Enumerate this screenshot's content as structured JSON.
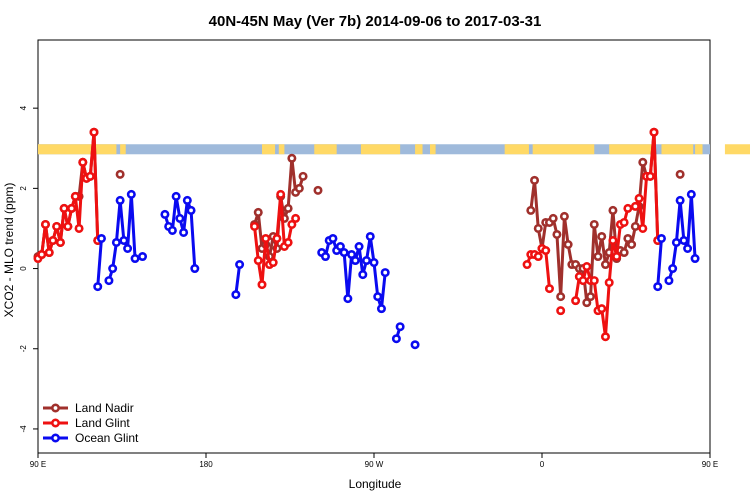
{
  "chart_data": {
    "type": "line",
    "title": "40N-45N May (Ver 7b)   2014-09-06 to 2017-03-31",
    "xlabel": "Longitude",
    "ylabel": "XCO2 - MLO trend (ppm)",
    "xlim": [
      90,
      450
    ],
    "ylim": [
      -4.6,
      5.7
    ],
    "xticks": [
      {
        "value": 90,
        "label": "90 E"
      },
      {
        "value": 180,
        "label": "180"
      },
      {
        "value": 270,
        "label": "90 W"
      },
      {
        "value": 360,
        "label": "0"
      },
      {
        "value": 450,
        "label": "90 E"
      },
      {
        "value": 540,
        "label": "180"
      }
    ],
    "yticks": [
      {
        "value": -4,
        "label": "-4"
      },
      {
        "value": -2,
        "label": "-2"
      },
      {
        "value": 0,
        "label": "0"
      },
      {
        "value": 2,
        "label": "2"
      },
      {
        "value": 4,
        "label": "4"
      }
    ],
    "grid": false,
    "legend_position": "bottom-left",
    "land_ocean_strip": {
      "y_range": [
        2.85,
        3.1
      ],
      "land_color": "#ffd966",
      "ocean_color": "#9fbadb",
      "land_segments": [
        [
          90,
          132
        ],
        [
          134,
          137
        ],
        [
          210,
          217
        ],
        [
          219,
          222
        ],
        [
          238,
          250
        ],
        [
          263,
          284
        ],
        [
          292,
          296
        ],
        [
          300,
          303
        ],
        [
          340,
          353
        ],
        [
          355,
          388
        ],
        [
          396,
          420
        ],
        [
          424,
          441
        ],
        [
          442,
          446
        ],
        [
          458,
          486
        ],
        [
          488,
          490
        ]
      ]
    },
    "series": [
      {
        "name": "Land Nadir",
        "color": "#a0302c",
        "segments": [
          [
            [
              90,
              0.3
            ],
            [
              92,
              0.35
            ],
            [
              94,
              1.1
            ],
            [
              96,
              0.4
            ],
            [
              98,
              0.7
            ],
            [
              100,
              1.05
            ],
            [
              102,
              0.65
            ],
            [
              104,
              1.5
            ],
            [
              106,
              1.05
            ],
            [
              108,
              1.5
            ],
            [
              110,
              1.8
            ],
            [
              112,
              1.8
            ],
            [
              114,
              2.65
            ],
            [
              116,
              2.25
            ],
            [
              118,
              2.3
            ],
            [
              120,
              3.4
            ],
            [
              122,
              0.7
            ]
          ],
          [
            [
              134,
              2.35
            ]
          ],
          [
            [
              206,
              1.1
            ],
            [
              208,
              1.4
            ],
            [
              210,
              0.5
            ],
            [
              212,
              0.6
            ],
            [
              214,
              0.3
            ],
            [
              216,
              0.8
            ],
            [
              218,
              0.5
            ],
            [
              220,
              1.8
            ],
            [
              222,
              1.25
            ],
            [
              224,
              1.5
            ],
            [
              226,
              2.75
            ],
            [
              228,
              1.9
            ],
            [
              230,
              2.0
            ],
            [
              232,
              2.3
            ]
          ],
          [
            [
              240,
              1.95
            ]
          ],
          [
            [
              354,
              1.45
            ],
            [
              356,
              2.2
            ],
            [
              358,
              1.0
            ],
            [
              360,
              0.5
            ],
            [
              362,
              1.15
            ],
            [
              364,
              1.15
            ],
            [
              366,
              1.25
            ],
            [
              368,
              0.85
            ],
            [
              370,
              -0.7
            ],
            [
              372,
              1.3
            ],
            [
              374,
              0.6
            ],
            [
              376,
              0.1
            ],
            [
              378,
              0.1
            ],
            [
              380,
              0.0
            ],
            [
              382,
              0.0
            ],
            [
              384,
              -0.85
            ],
            [
              386,
              -0.7
            ],
            [
              388,
              1.1
            ],
            [
              390,
              0.3
            ],
            [
              392,
              0.8
            ],
            [
              394,
              0.1
            ],
            [
              396,
              0.4
            ],
            [
              398,
              1.45
            ],
            [
              400,
              0.25
            ],
            [
              402,
              0.45
            ],
            [
              404,
              0.4
            ],
            [
              406,
              0.75
            ],
            [
              408,
              0.6
            ],
            [
              410,
              1.05
            ],
            [
              412,
              1.55
            ],
            [
              414,
              2.65
            ],
            [
              416,
              2.3
            ],
            [
              418,
              2.3
            ],
            [
              420,
              3.4
            ],
            [
              422,
              0.7
            ]
          ],
          [
            [
              434,
              2.35
            ]
          ]
        ]
      },
      {
        "name": "Land Glint",
        "color": "#ee1111",
        "segments": [
          [
            [
              90,
              0.25
            ],
            [
              92,
              0.35
            ],
            [
              94,
              1.1
            ],
            [
              96,
              0.4
            ],
            [
              98,
              0.7
            ],
            [
              100,
              1.05
            ],
            [
              102,
              0.65
            ],
            [
              104,
              1.5
            ],
            [
              106,
              1.05
            ],
            [
              108,
              1.5
            ],
            [
              110,
              1.8
            ],
            [
              112,
              1.0
            ],
            [
              114,
              2.65
            ],
            [
              116,
              2.25
            ],
            [
              118,
              2.3
            ],
            [
              120,
              3.4
            ],
            [
              122,
              0.7
            ]
          ],
          [
            [
              206,
              1.05
            ],
            [
              208,
              0.2
            ],
            [
              210,
              -0.4
            ],
            [
              212,
              0.75
            ],
            [
              214,
              0.1
            ],
            [
              216,
              0.15
            ],
            [
              218,
              0.75
            ],
            [
              220,
              1.85
            ],
            [
              222,
              0.55
            ],
            [
              224,
              0.65
            ],
            [
              226,
              1.1
            ],
            [
              228,
              1.25
            ]
          ],
          [
            [
              352,
              0.1
            ],
            [
              354,
              0.35
            ],
            [
              356,
              0.35
            ],
            [
              358,
              0.3
            ],
            [
              360,
              0.5
            ],
            [
              362,
              0.45
            ],
            [
              364,
              -0.5
            ]
          ],
          [
            [
              370,
              -1.05
            ]
          ],
          [
            [
              378,
              -0.8
            ],
            [
              380,
              -0.2
            ],
            [
              382,
              -0.3
            ],
            [
              384,
              0.05
            ],
            [
              386,
              -0.3
            ],
            [
              388,
              -0.3
            ],
            [
              390,
              -1.05
            ],
            [
              392,
              -1.0
            ],
            [
              394,
              -1.7
            ],
            [
              396,
              -0.35
            ],
            [
              398,
              0.7
            ],
            [
              400,
              0.3
            ],
            [
              402,
              1.1
            ],
            [
              404,
              1.15
            ],
            [
              406,
              1.5
            ]
          ],
          [
            [
              410,
              1.55
            ],
            [
              412,
              1.75
            ],
            [
              414,
              1.0
            ],
            [
              416,
              2.3
            ],
            [
              418,
              2.3
            ],
            [
              420,
              3.4
            ],
            [
              422,
              0.7
            ]
          ]
        ]
      },
      {
        "name": "Ocean Glint",
        "color": "#0a0af0",
        "segments": [
          [
            [
              122,
              -0.45
            ],
            [
              124,
              0.75
            ]
          ],
          [
            [
              128,
              -0.3
            ],
            [
              130,
              0.0
            ],
            [
              132,
              0.65
            ],
            [
              134,
              1.7
            ],
            [
              136,
              0.7
            ],
            [
              138,
              0.5
            ],
            [
              140,
              1.85
            ],
            [
              142,
              0.25
            ]
          ],
          [
            [
              146,
              0.3
            ]
          ],
          [
            [
              158,
              1.35
            ],
            [
              160,
              1.05
            ],
            [
              162,
              0.95
            ],
            [
              164,
              1.8
            ],
            [
              166,
              1.25
            ],
            [
              168,
              0.9
            ],
            [
              170,
              1.7
            ],
            [
              172,
              1.45
            ],
            [
              174,
              0.0
            ]
          ],
          [
            [
              196,
              -0.65
            ],
            [
              198,
              0.1
            ]
          ],
          [
            [
              242,
              0.4
            ],
            [
              244,
              0.3
            ],
            [
              246,
              0.7
            ],
            [
              248,
              0.75
            ],
            [
              250,
              0.45
            ],
            [
              252,
              0.55
            ],
            [
              254,
              0.4
            ],
            [
              256,
              -0.75
            ],
            [
              258,
              0.35
            ],
            [
              260,
              0.2
            ],
            [
              262,
              0.55
            ],
            [
              264,
              -0.15
            ],
            [
              266,
              0.2
            ],
            [
              268,
              0.8
            ],
            [
              270,
              0.15
            ],
            [
              272,
              -0.7
            ],
            [
              274,
              -1.0
            ],
            [
              276,
              -0.1
            ]
          ],
          [
            [
              282,
              -1.75
            ],
            [
              284,
              -1.45
            ]
          ],
          [
            [
              292,
              -1.9
            ]
          ],
          [
            [
              422,
              -0.45
            ],
            [
              424,
              0.75
            ]
          ],
          [
            [
              428,
              -0.3
            ],
            [
              430,
              0.0
            ],
            [
              432,
              0.65
            ],
            [
              434,
              1.7
            ],
            [
              436,
              0.7
            ],
            [
              438,
              0.5
            ],
            [
              440,
              1.85
            ],
            [
              442,
              0.25
            ]
          ]
        ]
      }
    ]
  }
}
